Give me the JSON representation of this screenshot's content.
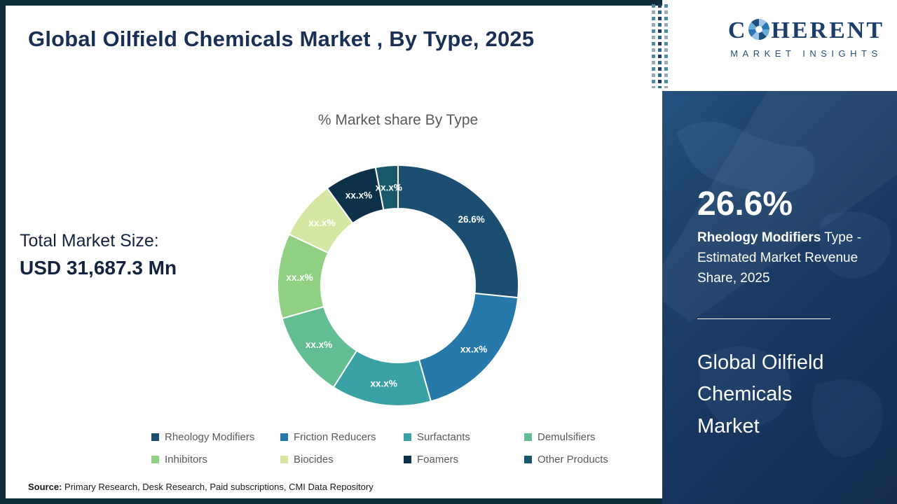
{
  "header": {
    "title": "Global Oilfield Chemicals Market , By Type, 2025"
  },
  "chart_section": {
    "total_label": "Total Market Size:",
    "total_value": "USD 31,687.3 Mn"
  },
  "chart_data": {
    "type": "pie",
    "donut": true,
    "title": "% Market share By Type",
    "categories": [
      "Rheology Modifiers",
      "Friction Reducers",
      "Surfactants",
      "Demulsifiers",
      "Inhibitors",
      "Biocides",
      "Foamers",
      "Other Products"
    ],
    "values": [
      26.6,
      19.0,
      13.4,
      11.6,
      11.4,
      8.0,
      7.0,
      3.0
    ],
    "display_labels": [
      "26.6%",
      "xx.x%",
      "xx.x%",
      "xx.x%",
      "xx.x%",
      "xx.x%",
      "xx.x%",
      "xx.x%"
    ],
    "colors": [
      "#1c4e71",
      "#2679a8",
      "#3aa2a4",
      "#63bd92",
      "#90d183",
      "#d5e8a3",
      "#0d3149",
      "#19586b"
    ],
    "legend_position": "bottom"
  },
  "source": {
    "label": "Source:",
    "text": " Primary Research, Desk Research, Paid subscriptions, CMI Data Repository"
  },
  "sidebar": {
    "logo": {
      "prefix": "C",
      "suffix": "HERENT",
      "tagline": "MARKET INSIGHTS"
    },
    "stat_value": "26.6%",
    "stat_bold": "Rheology Modifiers",
    "stat_rest": "  Type - Estimated Market Revenue Share, 2025",
    "market_title": "Global Oilfield Chemicals Market"
  }
}
